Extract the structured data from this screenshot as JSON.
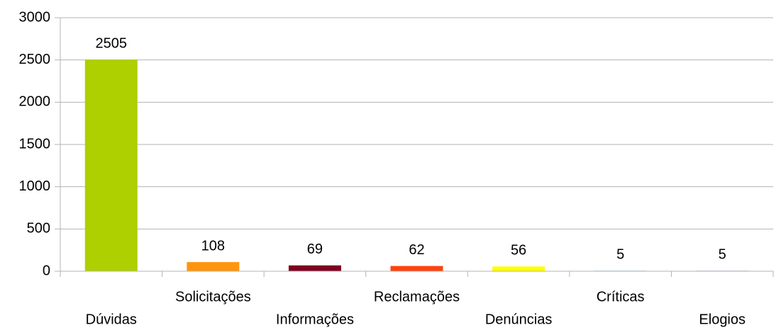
{
  "chart_data": {
    "type": "bar",
    "categories": [
      "Dúvidas",
      "Solicitações",
      "Informações",
      "Reclamações",
      "Denúncias",
      "Críticas",
      "Elogios"
    ],
    "values": [
      2505,
      108,
      69,
      62,
      56,
      5,
      5
    ],
    "colors": [
      "#aecf00",
      "#ff950e",
      "#7e0021",
      "#ff420e",
      "#ffff00",
      "#0084d1",
      "#004586"
    ],
    "ylim": [
      0,
      3000
    ],
    "yticks": [
      0,
      500,
      1000,
      1500,
      2000,
      2500,
      3000
    ],
    "grid": true
  }
}
